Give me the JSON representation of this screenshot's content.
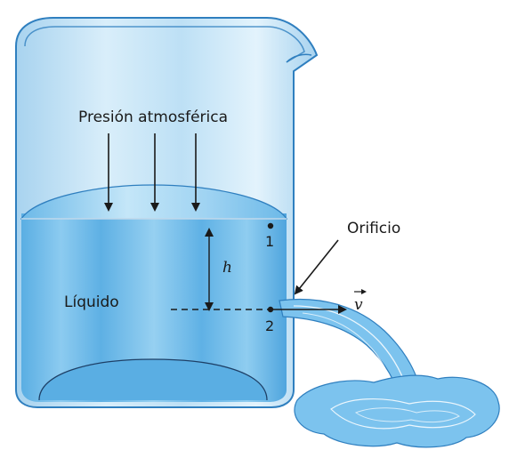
{
  "labels": {
    "pressure": "Presión atmosférica",
    "liquid": "Líquido",
    "orifice": "Orificio",
    "height": "h",
    "point1": "1",
    "point2": "2",
    "velocity": "v"
  },
  "colors": {
    "beaker_glass": "#bfe0f4",
    "beaker_outline": "#2f7fbf",
    "liquid": "#6fb6e6",
    "liquid_dark": "#4aa0dc",
    "surface": "#a9d6f2",
    "stream": "#7cc3ee",
    "ink": "#1a1a1a"
  }
}
